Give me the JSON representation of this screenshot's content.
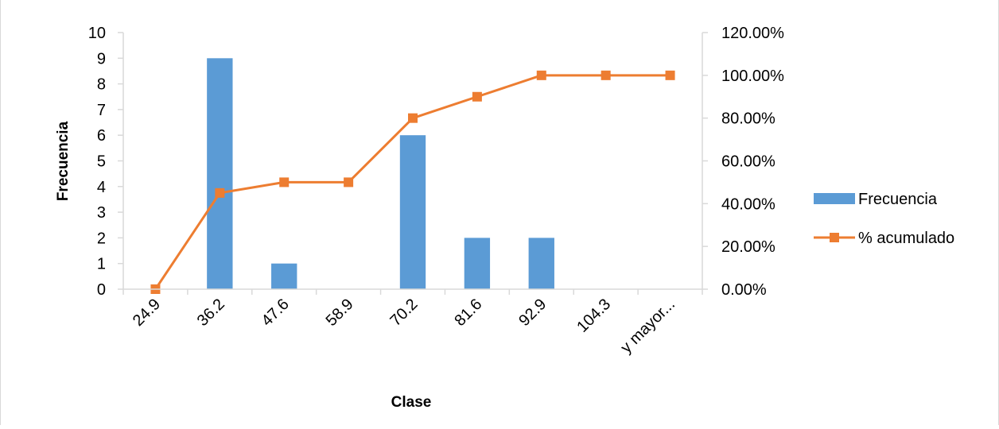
{
  "chart_data": {
    "type": "bar",
    "categories": [
      "24.9",
      "36.2",
      "47.6",
      "58.9",
      "70.2",
      "81.6",
      "92.9",
      "104.3",
      "y mayor..."
    ],
    "series": [
      {
        "name": "Frecuencia",
        "type": "bar",
        "axis": "left",
        "color": "#5b9bd5",
        "values": [
          0,
          9,
          1,
          0,
          6,
          2,
          2,
          0,
          0
        ]
      },
      {
        "name": "% acumulado",
        "type": "line",
        "axis": "right",
        "color": "#ed7d31",
        "values": [
          0,
          45,
          50,
          50,
          80,
          90,
          100,
          100,
          100
        ]
      }
    ],
    "xlabel": "Clase",
    "ylabel": "Frecuencia",
    "ylim": [
      0,
      10
    ],
    "y_ticks": [
      0,
      1,
      2,
      3,
      4,
      5,
      6,
      7,
      8,
      9,
      10
    ],
    "y2lim": [
      0,
      120
    ],
    "y2_ticks": [
      "0.00%",
      "20.00%",
      "40.00%",
      "60.00%",
      "80.00%",
      "100.00%",
      "120.00%"
    ],
    "grid": false,
    "legend_position": "right"
  }
}
